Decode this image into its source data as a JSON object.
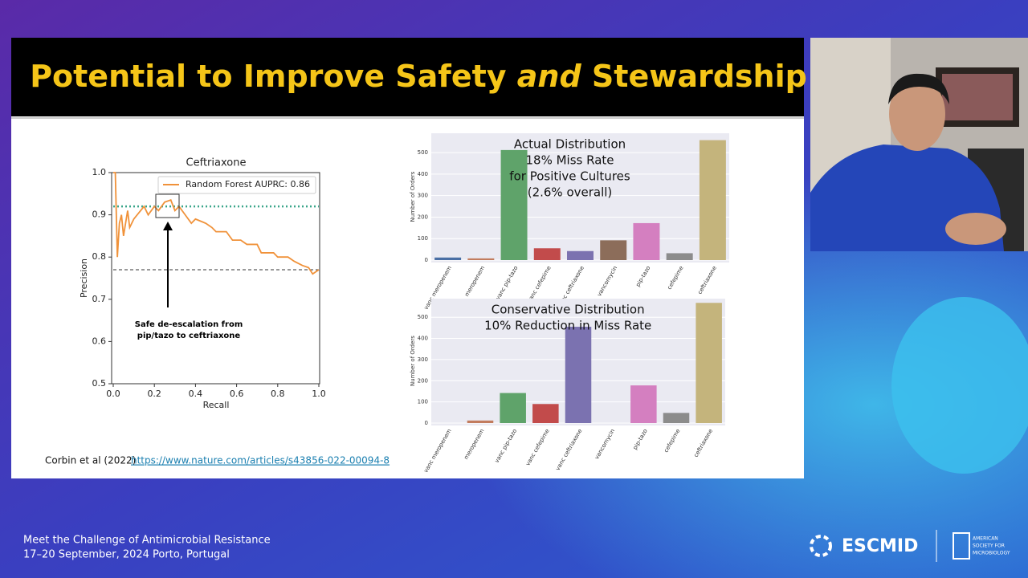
{
  "slide": {
    "title": {
      "before": "Potential to Improve Safety",
      "emphasis": "and",
      "after": "Stewardship"
    },
    "citation": {
      "text": "Corbin et al (2022)",
      "link": "https://www.nature.com/articles/s43856-022-00094-8"
    }
  },
  "chart_data": [
    {
      "type": "line",
      "title": "Ceftriaxone",
      "x_label": "Recall",
      "y_label": "Precision",
      "xlim": [
        0,
        1
      ],
      "ylim": [
        0.5,
        1.0
      ],
      "xticks": [
        {
          "value": 0,
          "label": "0.0"
        },
        0.2,
        0.4,
        0.6,
        0.8,
        {
          "value": 1,
          "label": "1.0"
        }
      ],
      "yticks": [
        0.5,
        0.6,
        0.7,
        0.8,
        0.9,
        {
          "value": 1,
          "label": "1.0"
        }
      ],
      "series": [
        {
          "name": "Random Forest AUPRC: 0.86",
          "color": "#f0923a",
          "x": [
            0,
            0.01,
            0.02,
            0.03,
            0.04,
            0.05,
            0.07,
            0.08,
            0.1,
            0.15,
            0.17,
            0.2,
            0.22,
            0.25,
            0.28,
            0.3,
            0.32,
            0.35,
            0.38,
            0.4,
            0.45,
            0.48,
            0.5,
            0.55,
            0.58,
            0.62,
            0.65,
            0.7,
            0.72,
            0.78,
            0.8,
            0.85,
            0.88,
            0.92,
            0.95,
            0.97,
            1.0
          ],
          "values": [
            1.0,
            1.0,
            0.8,
            0.88,
            0.9,
            0.85,
            0.91,
            0.87,
            0.89,
            0.92,
            0.9,
            0.92,
            0.91,
            0.93,
            0.935,
            0.91,
            0.92,
            0.9,
            0.88,
            0.89,
            0.88,
            0.87,
            0.86,
            0.86,
            0.84,
            0.84,
            0.83,
            0.83,
            0.81,
            0.81,
            0.8,
            0.8,
            0.79,
            0.78,
            0.775,
            0.76,
            0.77
          ]
        }
      ],
      "reference_lines": [
        {
          "value": 0.92,
          "color": "#3aa58a",
          "style": "dotted"
        },
        {
          "value": 0.77,
          "color": "#333333",
          "style": "dashed"
        }
      ],
      "annotation": [
        "Safe de-escalation from",
        "pip/tazo to ceftriaxone"
      ]
    },
    {
      "type": "bar",
      "title": [
        "Actual Distribution",
        "18% Miss Rate",
        "for Positive Cultures",
        "(2.6% overall)"
      ],
      "y_label": "Number of Orders",
      "categories": [
        "vanc meropenem",
        "meropenem",
        "vanc pip-tazo",
        "vanc cefepime",
        "vanc ceftriaxone",
        "vancomycin",
        "pip-tazo",
        "cefepime",
        "ceftriaxone"
      ],
      "values": [
        12,
        8,
        512,
        55,
        42,
        92,
        172,
        32,
        558
      ],
      "colors": [
        "#4a6fa5",
        "#c27c5e",
        "#5fa36a",
        "#c24b4b",
        "#7b72b0",
        "#8c6d5a",
        "#d47fc0",
        "#8c8c8c",
        "#c4b47c"
      ],
      "ylim": [
        0,
        590
      ],
      "yticks": [
        0,
        100,
        200,
        300,
        400,
        500
      ]
    },
    {
      "type": "bar",
      "title": [
        "Conservative Distribution",
        "10% Reduction in Miss Rate"
      ],
      "y_label": "Number of Orders",
      "categories": [
        "vanc meropenem",
        "meropenem",
        "vanc pip-tazo",
        "vanc cefepime",
        "vanc ceftriaxone",
        "vancomycin",
        "pip-tazo",
        "cefepime",
        "ceftriaxone"
      ],
      "values": [
        0,
        12,
        142,
        90,
        455,
        0,
        178,
        48,
        568
      ],
      "colors": [
        "#4a6fa5",
        "#c27c5e",
        "#5fa36a",
        "#c24b4b",
        "#7b72b0",
        "#8c6d5a",
        "#d47fc0",
        "#8c8c8c",
        "#c4b47c"
      ],
      "ylim": [
        0,
        588
      ],
      "yticks": [
        0,
        100,
        200,
        300,
        400,
        500
      ]
    }
  ],
  "footer": {
    "event": "Meet the Challenge of Antimicrobial Resistance",
    "dates": "17–20 September, 2024 Porto, Portugal",
    "logo": "ESCMID",
    "society": [
      "AMERICAN",
      "SOCIETY FOR",
      "MICROBIOLOGY"
    ]
  }
}
